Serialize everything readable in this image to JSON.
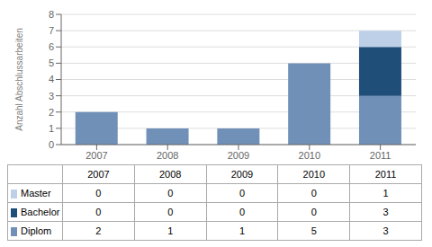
{
  "chart_data": {
    "type": "bar",
    "stacked": true,
    "categories": [
      "2007",
      "2008",
      "2009",
      "2010",
      "2011"
    ],
    "series": [
      {
        "name": "Diplom",
        "color": "#7090b8",
        "values": [
          2,
          1,
          1,
          5,
          3
        ]
      },
      {
        "name": "Bachelor",
        "color": "#1f4e79",
        "values": [
          0,
          0,
          0,
          0,
          3
        ]
      },
      {
        "name": "Master",
        "color": "#bdd0e8",
        "values": [
          0,
          0,
          0,
          0,
          1
        ]
      }
    ],
    "ylabel": "Anzahl Abschlussarbeiten",
    "ylim": [
      0,
      8
    ],
    "yticks": [
      0,
      1,
      2,
      3,
      4,
      5,
      6,
      7,
      8
    ],
    "grid": true
  }
}
